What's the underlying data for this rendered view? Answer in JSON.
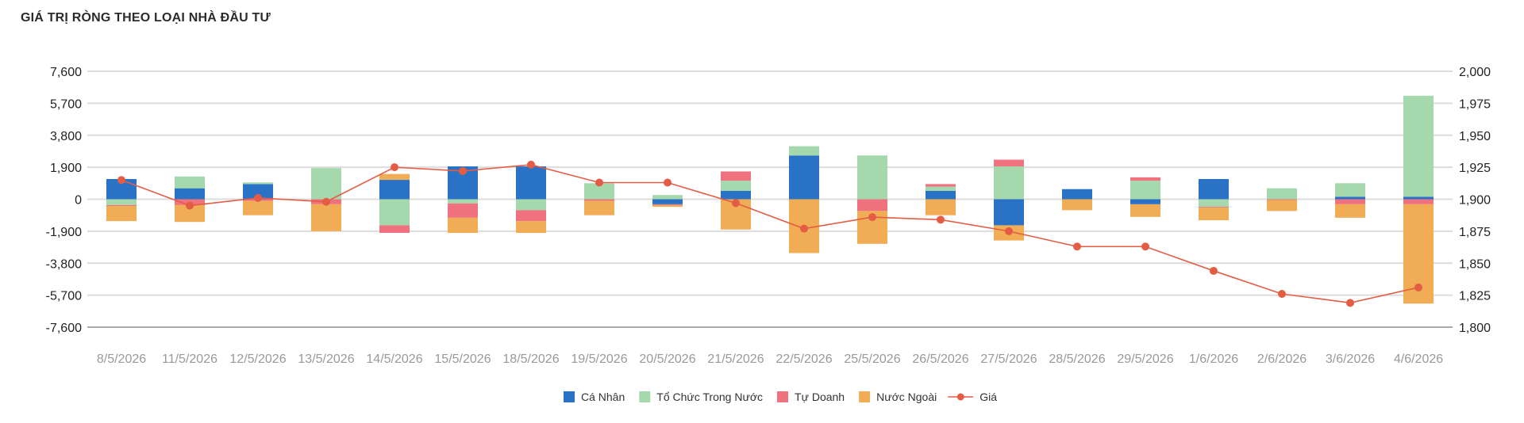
{
  "title": "GIÁ TRỊ RÒNG THEO LOẠI NHÀ ĐẦU TƯ",
  "chart_data": {
    "type": "bar",
    "stacked": true,
    "categories": [
      "8/5/2026",
      "11/5/2026",
      "12/5/2026",
      "13/5/2026",
      "14/5/2026",
      "15/5/2026",
      "18/5/2026",
      "19/5/2026",
      "20/5/2026",
      "21/5/2026",
      "22/5/2026",
      "25/5/2026",
      "26/5/2026",
      "27/5/2026",
      "28/5/2026",
      "29/5/2026",
      "1/6/2026",
      "2/6/2026",
      "3/6/2026",
      "4/6/2026"
    ],
    "y_ticks": [
      "7,600",
      "5,700",
      "3,800",
      "1,900",
      "0",
      "-1,900",
      "-3,800",
      "-5,700",
      "-7,600"
    ],
    "y2_ticks": [
      "2,000",
      "1,975",
      "1,950",
      "1,925",
      "1,900",
      "1,875",
      "1,850",
      "1,825",
      "1,800"
    ],
    "ylim": [
      -7600,
      7600
    ],
    "y2lim": [
      1800,
      2000
    ],
    "grid": true,
    "legend_position": "bottom",
    "series": [
      {
        "name": "Cá Nhân",
        "color": "#2a72c6",
        "values": [
          1200,
          650,
          900,
          0,
          1150,
          1950,
          1950,
          0,
          -300,
          500,
          2600,
          0,
          500,
          -1550,
          600,
          -300,
          1200,
          0,
          150,
          150
        ]
      },
      {
        "name": "Tổ Chức Trong Nước",
        "color": "#a6d8ad",
        "values": [
          -350,
          700,
          100,
          1850,
          -1550,
          -250,
          -650,
          950,
          250,
          600,
          550,
          2600,
          250,
          1950,
          0,
          1100,
          -450,
          650,
          800,
          6000
        ]
      },
      {
        "name": "Tự Doanh",
        "color": "#f0727f",
        "values": [
          -50,
          -350,
          -100,
          -300,
          -450,
          -850,
          -650,
          -100,
          -50,
          550,
          0,
          -700,
          150,
          400,
          0,
          200,
          -50,
          -50,
          -300,
          -300
        ]
      },
      {
        "name": "Nước Ngoài",
        "color": "#f0ad55",
        "values": [
          -900,
          -1000,
          -850,
          -1600,
          350,
          -900,
          -700,
          -850,
          -100,
          -1800,
          -3200,
          -1950,
          -950,
          -900,
          -650,
          -750,
          -750,
          -650,
          -800,
          -5900
        ]
      }
    ],
    "line": {
      "name": "Giá",
      "color": "#e45c44",
      "axis": "right",
      "values": [
        1915,
        1895,
        1901,
        1898,
        1925,
        1922,
        1927,
        1913,
        1913,
        1897,
        1877,
        1886,
        1884,
        1875,
        1863,
        1863,
        1844,
        1826,
        1819,
        1831
      ]
    }
  }
}
